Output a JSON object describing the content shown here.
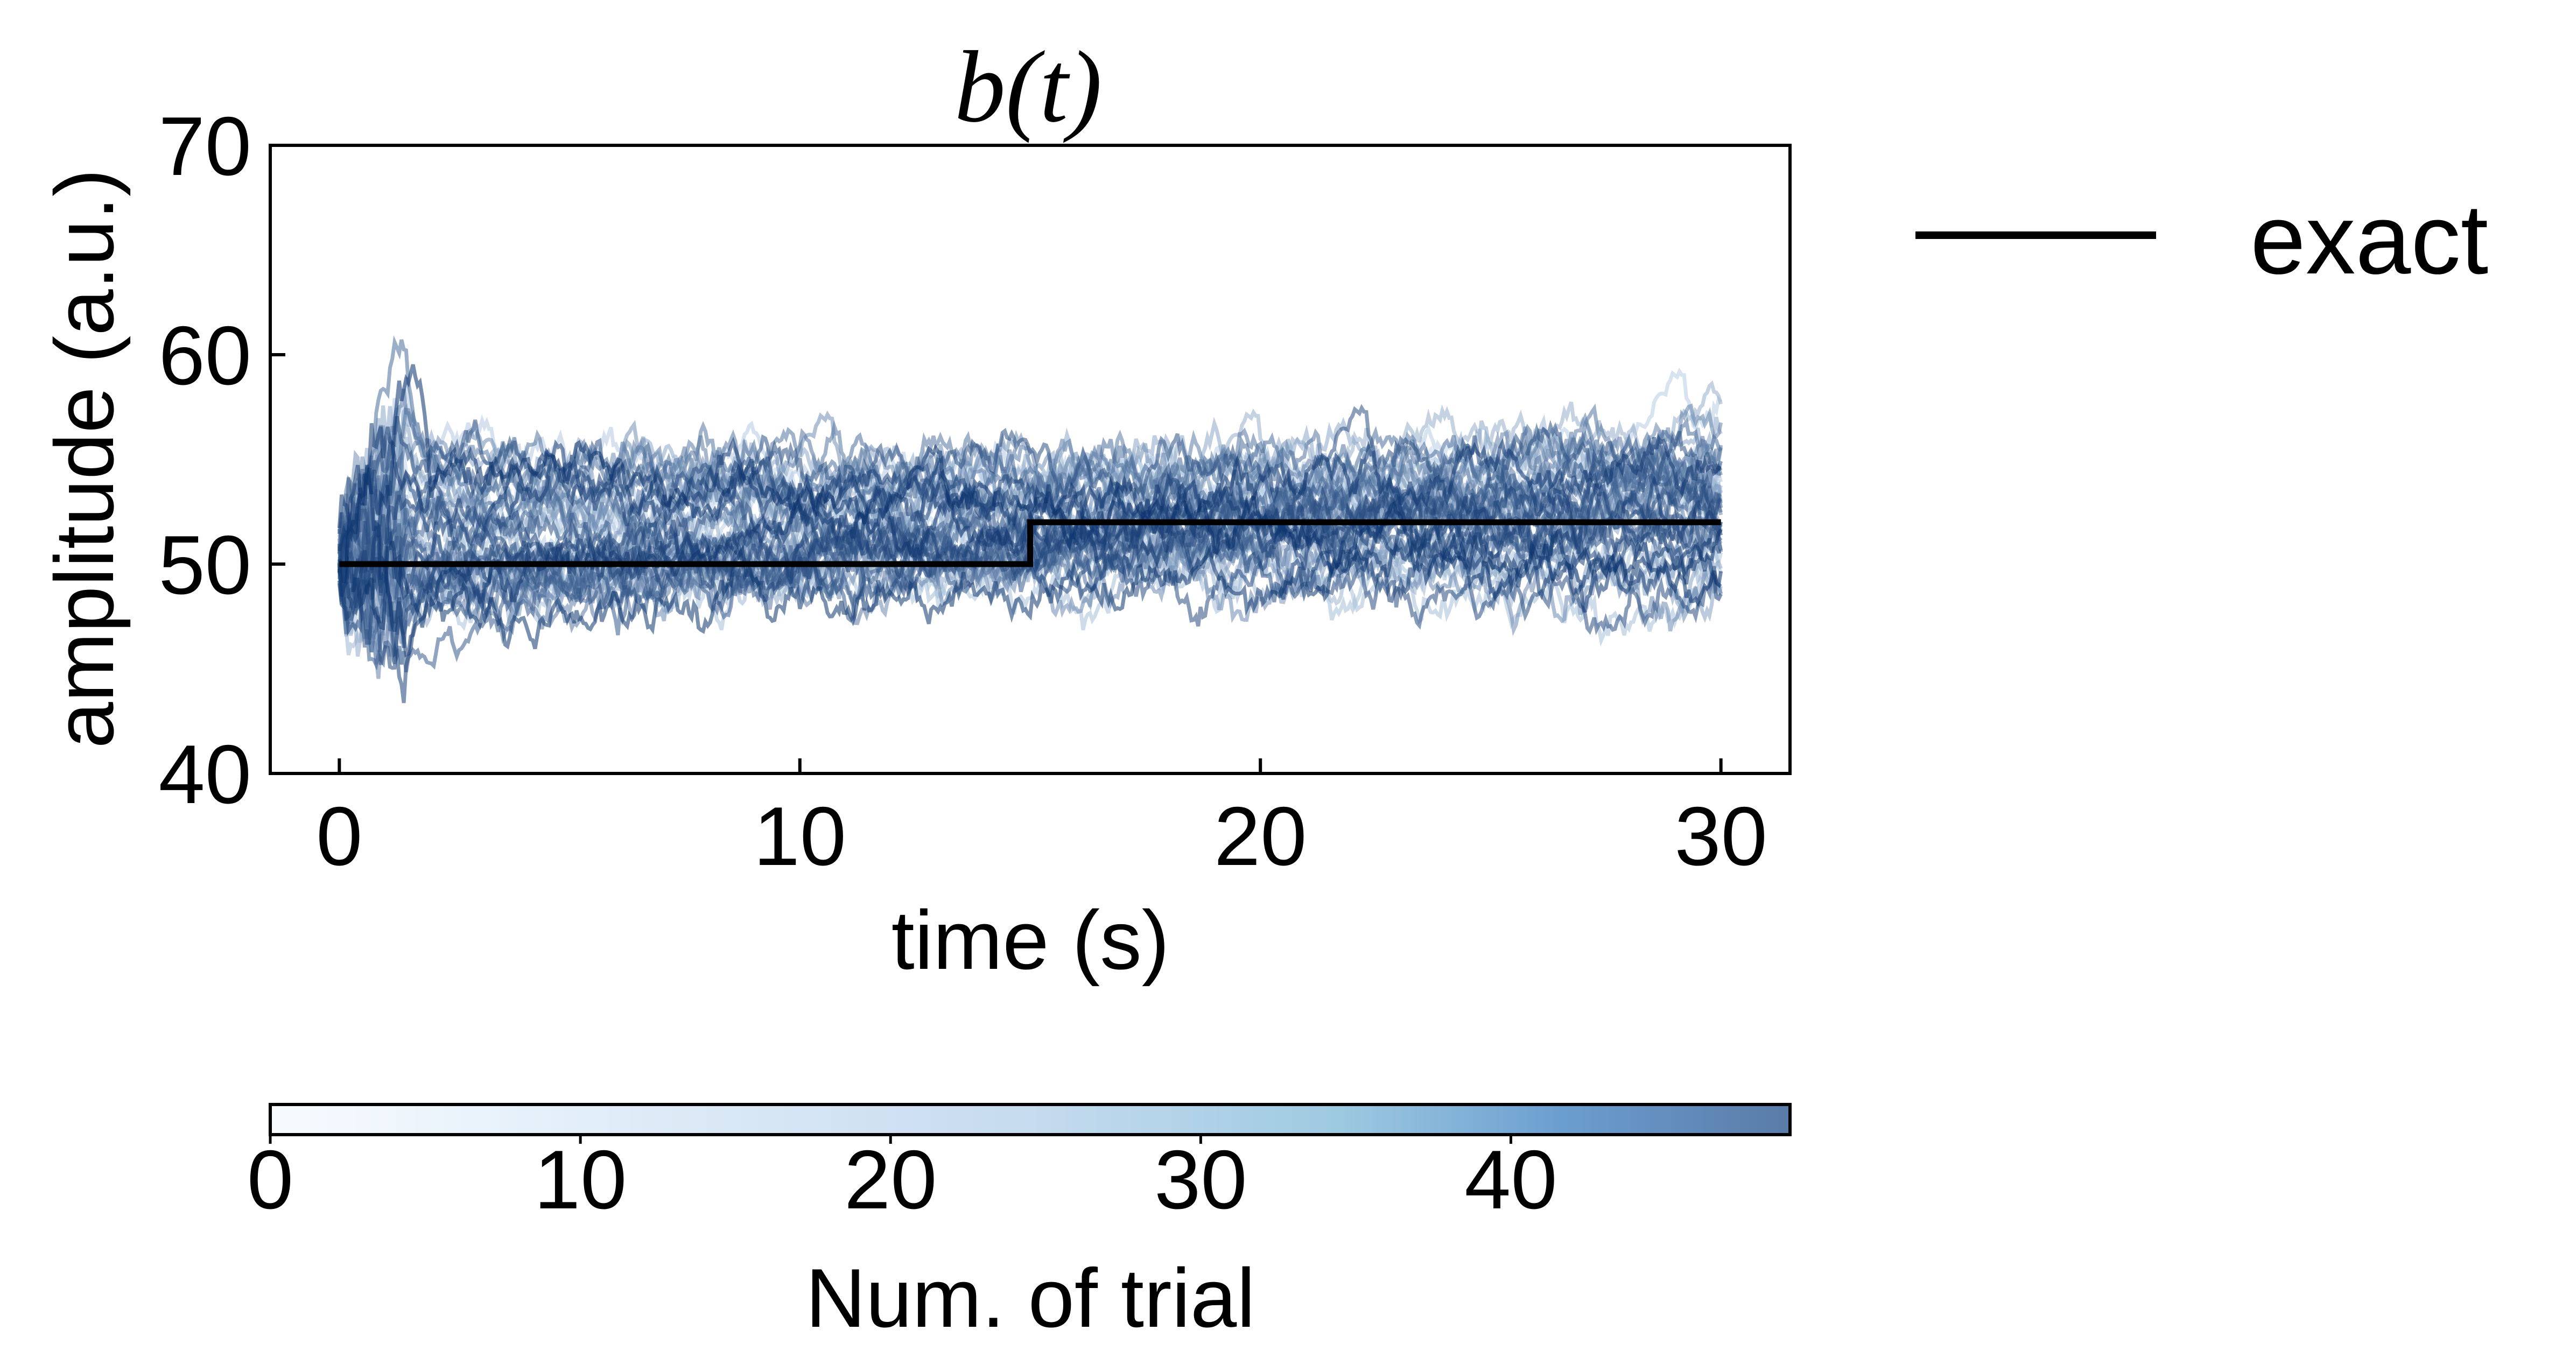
{
  "chart_data": {
    "type": "line",
    "title": "b(t)",
    "xlabel": "time (s)",
    "ylabel": "amplitude (a.u.)",
    "xlim": [
      -1.5,
      31.5
    ],
    "ylim": [
      40,
      70
    ],
    "xticks": [
      0,
      10,
      20,
      30
    ],
    "yticks": [
      40,
      50,
      60,
      70
    ],
    "grid": false,
    "legend": {
      "location": "outside-right",
      "entries": [
        "exact"
      ]
    },
    "exact": {
      "name": "exact",
      "color": "#000000",
      "x": [
        0,
        15,
        15,
        30
      ],
      "y": [
        50,
        50,
        52,
        52
      ]
    },
    "trials": {
      "count": 49,
      "t_start": 0,
      "t_end": 30,
      "start_value": 50,
      "approx_range_at_end": [
        48,
        56.5
      ],
      "spike_peak": {
        "x": 1.5,
        "y": 57.8
      },
      "colormap": "Blues"
    },
    "colorbar": {
      "label": "Num. of trial",
      "ticks": [
        0,
        10,
        20,
        30,
        40
      ],
      "range": [
        0,
        49
      ],
      "colormap": "Blues"
    }
  }
}
